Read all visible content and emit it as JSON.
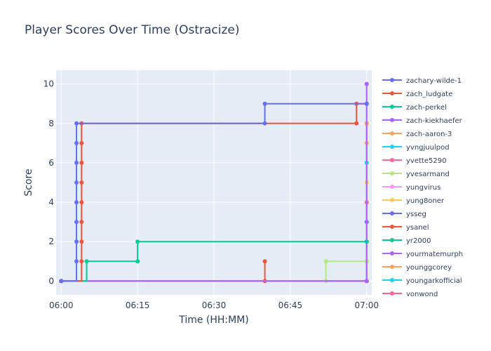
{
  "chart_data": {
    "type": "line",
    "line_shape": "step",
    "title": "Player Scores Over Time (Ostracize)",
    "xlabel": "Time (HH:MM)",
    "ylabel": "Score",
    "x_unit": "time",
    "x_ticks": [
      "06:00",
      "06:15",
      "06:30",
      "06:45",
      "07:00"
    ],
    "xlim": [
      "05:59",
      "07:01"
    ],
    "y_ticks": [
      0,
      2,
      4,
      6,
      8,
      10
    ],
    "ylim": [
      -0.7,
      10.7
    ],
    "grid": true,
    "legend_position": "right",
    "plot_background": "#e5ecf6",
    "series": [
      {
        "name": "zachary-wilde-1",
        "color": "#636efa",
        "points": [
          [
            "06:00",
            0
          ],
          [
            "06:03",
            1
          ],
          [
            "06:03",
            2
          ],
          [
            "06:03",
            3
          ],
          [
            "06:03",
            4
          ],
          [
            "06:03",
            5
          ],
          [
            "06:03",
            6
          ],
          [
            "06:03",
            7
          ],
          [
            "06:03",
            8
          ],
          [
            "06:40",
            8
          ],
          [
            "06:40",
            9
          ],
          [
            "07:00",
            9
          ]
        ]
      },
      {
        "name": "zach_ludgate",
        "color": "#ef553b",
        "points": [
          [
            "06:00",
            0
          ],
          [
            "06:04",
            1
          ],
          [
            "06:04",
            2
          ],
          [
            "06:04",
            3
          ],
          [
            "06:04",
            4
          ],
          [
            "06:04",
            5
          ],
          [
            "06:04",
            6
          ],
          [
            "06:04",
            7
          ],
          [
            "06:04",
            8
          ],
          [
            "06:58",
            8
          ],
          [
            "06:58",
            9
          ],
          [
            "07:00",
            9
          ]
        ]
      },
      {
        "name": "zach-perkel",
        "color": "#00cc96",
        "points": [
          [
            "06:00",
            0
          ],
          [
            "06:05",
            1
          ],
          [
            "06:15",
            1
          ],
          [
            "06:15",
            2
          ],
          [
            "07:00",
            2
          ]
        ]
      },
      {
        "name": "zach-kiekhaefer",
        "color": "#ab63fa",
        "points": [
          [
            "06:00",
            0
          ],
          [
            "07:00",
            0
          ],
          [
            "07:00",
            10
          ]
        ]
      },
      {
        "name": "zach-aaron-3",
        "color": "#ffa15a",
        "points": [
          [
            "06:00",
            0
          ],
          [
            "07:00",
            0
          ],
          [
            "07:00",
            8
          ]
        ]
      },
      {
        "name": "yvngjuulpod",
        "color": "#19d3f3",
        "points": [
          [
            "06:00",
            0
          ],
          [
            "07:00",
            0
          ],
          [
            "07:00",
            6
          ]
        ]
      },
      {
        "name": "yvette5290",
        "color": "#ff6692",
        "points": [
          [
            "06:00",
            0
          ],
          [
            "07:00",
            0
          ],
          [
            "07:00",
            4
          ]
        ]
      },
      {
        "name": "yvesarmand",
        "color": "#b6e880",
        "points": [
          [
            "06:00",
            0
          ],
          [
            "06:52",
            0
          ],
          [
            "06:52",
            1
          ],
          [
            "07:00",
            1
          ]
        ]
      },
      {
        "name": "yungvirus",
        "color": "#ff97ff",
        "points": [
          [
            "06:00",
            0
          ],
          [
            "07:00",
            0
          ],
          [
            "07:00",
            10
          ]
        ]
      },
      {
        "name": "yung8oner",
        "color": "#fecb52",
        "points": [
          [
            "06:00",
            0
          ],
          [
            "07:00",
            0
          ],
          [
            "07:00",
            5
          ]
        ]
      },
      {
        "name": "ysseg",
        "color": "#636efa",
        "points": [
          [
            "06:00",
            0
          ],
          [
            "07:00",
            0
          ],
          [
            "07:00",
            3
          ]
        ]
      },
      {
        "name": "ysanel",
        "color": "#ef553b",
        "points": [
          [
            "06:00",
            0
          ],
          [
            "06:40",
            0
          ],
          [
            "06:40",
            1
          ]
        ]
      },
      {
        "name": "yr2000",
        "color": "#00cc96",
        "points": [
          [
            "06:00",
            0
          ],
          [
            "07:00",
            0
          ],
          [
            "07:00",
            1
          ]
        ]
      },
      {
        "name": "yourmatemurph",
        "color": "#ab63fa",
        "points": [
          [
            "06:00",
            0
          ],
          [
            "07:00",
            0
          ],
          [
            "07:00",
            2
          ]
        ]
      },
      {
        "name": "younggcorey",
        "color": "#ffa15a",
        "points": [
          [
            "06:00",
            0
          ],
          [
            "07:00",
            0
          ],
          [
            "07:00",
            7
          ]
        ]
      },
      {
        "name": "youngarkofficial",
        "color": "#19d3f3",
        "points": [
          [
            "06:00",
            0
          ],
          [
            "07:00",
            0
          ],
          [
            "07:00",
            9
          ]
        ]
      },
      {
        "name": "yonwond",
        "color": "#ff6692",
        "points": [
          [
            "06:00",
            0
          ],
          [
            "07:00",
            0
          ],
          [
            "07:00",
            8
          ]
        ]
      }
    ]
  }
}
